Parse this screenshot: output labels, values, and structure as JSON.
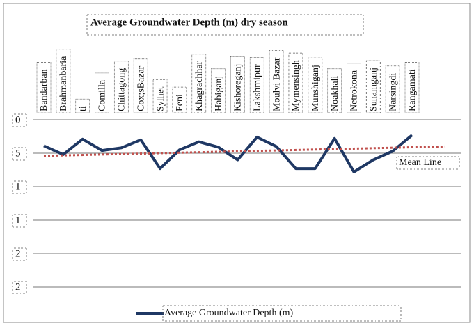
{
  "chart_data": {
    "type": "line",
    "title": "Average Groundwater Depth (m) dry season",
    "categories": [
      "Bandarban",
      "Brahmanbaria",
      "ti",
      "Comilla",
      "Chittagong",
      "Cox;sBazar",
      "Sylhet",
      "Feni",
      "Khagrachhar",
      "Habiganj",
      "Kishoreganj",
      "Lakshmipur",
      "Moulvi Bazar",
      "Mymensingh",
      "Munshiganj",
      "Noakhali",
      "Netrokona",
      "Sunamganj",
      "Narsingdi",
      "Rangamati"
    ],
    "series": [
      {
        "name": "Average Groundwater Depth (m)",
        "color": "#1f3864",
        "values": [
          3.9,
          5.2,
          2.9,
          4.6,
          4.2,
          3.0,
          7.3,
          4.5,
          3.3,
          4.1,
          6.0,
          2.6,
          4.0,
          7.3,
          7.3,
          2.8,
          7.8,
          6.0,
          4.7,
          2.3
        ]
      }
    ],
    "mean_line": {
      "name": "Mean Line",
      "color": "#c0504d",
      "values": [
        5.4,
        4.0
      ]
    },
    "ylim": [
      0,
      25
    ],
    "yticks": [
      0,
      5,
      {
        "value": 10,
        "label": "1"
      },
      {
        "value": 15,
        "label": "1"
      },
      {
        "value": 20,
        "label": "2"
      },
      {
        "value": 25,
        "label": "2"
      }
    ],
    "y_inverted": true,
    "grid": true
  }
}
